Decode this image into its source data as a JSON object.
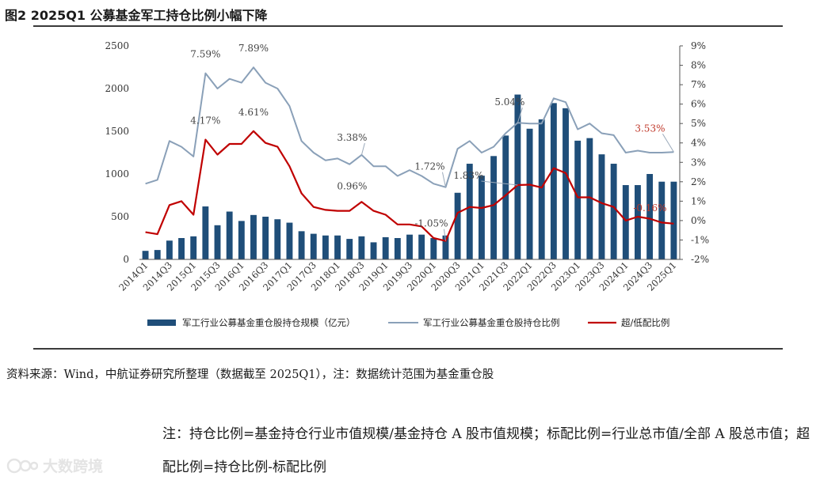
{
  "figure_title": "图2  2025Q1 公募基金军工持仓比例小幅下降",
  "source_text": "资料来源：Wind，中航证券研究所整理（数据截至 2025Q1），注：数据统计范围为基金重仓股",
  "note_text": "注：持仓比例=基金持仓行业市值规模/基金持仓 A 股市值规模；标配比例=行业总市值/全部 A 股总市值；超配比例=持仓比例-标配比例",
  "watermark": "大数跨境",
  "colors": {
    "bar": "#1f4e79",
    "ratio_line": "#8aa0b8",
    "over_line": "#c00000",
    "over_ann": "#c0392b"
  },
  "chart_data": {
    "type": "bar+line",
    "title": "2025Q1 公募基金军工持仓比例小幅下降",
    "categories": [
      "2014Q1",
      "2014Q2",
      "2014Q3",
      "2014Q4",
      "2015Q1",
      "2015Q2",
      "2015Q3",
      "2015Q4",
      "2016Q1",
      "2016Q2",
      "2016Q3",
      "2016Q4",
      "2017Q1",
      "2017Q2",
      "2017Q3",
      "2017Q4",
      "2018Q1",
      "2018Q2",
      "2018Q3",
      "2018Q4",
      "2019Q1",
      "2019Q2",
      "2019Q3",
      "2019Q4",
      "2020Q1",
      "2020Q2",
      "2020Q3",
      "2020Q4",
      "2021Q1",
      "2021Q2",
      "2021Q3",
      "2021Q4",
      "2022Q1",
      "2022Q2",
      "2022Q3",
      "2022Q4",
      "2023Q1",
      "2023Q2",
      "2023Q3",
      "2023Q4",
      "2024Q1",
      "2024Q2",
      "2024Q3",
      "2024Q4",
      "2025Q1"
    ],
    "x_tick_labels": [
      "2014Q1",
      "2014Q3",
      "2015Q1",
      "2015Q3",
      "2016Q1",
      "2016Q3",
      "2017Q1",
      "2017Q3",
      "2018Q1",
      "2018Q3",
      "2019Q1",
      "2019Q3",
      "2020Q1",
      "2020Q3",
      "2021Q1",
      "2021Q3",
      "2022Q1",
      "2022Q3",
      "2023Q1",
      "2023Q3",
      "2024Q1",
      "2024Q3",
      "2025Q1"
    ],
    "left_axis": {
      "min": 0,
      "max": 2500,
      "ticks": [
        "0",
        "500",
        "1000",
        "1500",
        "2000",
        "2500"
      ]
    },
    "right_axis": {
      "min": -2,
      "max": 9,
      "ticks": [
        "-2%",
        "-1%",
        "0%",
        "1%",
        "2%",
        "3%",
        "4%",
        "5%",
        "6%",
        "7%",
        "8%",
        "9%"
      ]
    },
    "series": [
      {
        "name": "军工行业公募基金重仓股持仓规模（亿元）",
        "type": "bar",
        "axis": "left",
        "values": [
          100,
          110,
          220,
          250,
          270,
          620,
          400,
          560,
          450,
          520,
          500,
          470,
          430,
          330,
          300,
          280,
          280,
          240,
          270,
          200,
          260,
          250,
          290,
          290,
          250,
          280,
          780,
          1120,
          980,
          1210,
          1450,
          1930,
          1530,
          1640,
          1830,
          1770,
          1390,
          1420,
          1230,
          1120,
          870,
          870,
          1000,
          910,
          910
        ]
      },
      {
        "name": "军工行业公募基金重仓股持仓比例",
        "type": "line",
        "axis": "right",
        "values": [
          1.9,
          2.1,
          4.1,
          3.8,
          3.3,
          7.59,
          6.8,
          7.3,
          7.1,
          7.89,
          7.1,
          6.8,
          5.9,
          4.1,
          3.5,
          3.1,
          3.2,
          2.9,
          3.38,
          2.8,
          2.8,
          2.3,
          2.6,
          2.3,
          1.9,
          1.72,
          3.7,
          4.1,
          3.5,
          3.8,
          4.5,
          5.04,
          5.0,
          5.0,
          6.3,
          6.1,
          4.7,
          5.0,
          4.5,
          4.4,
          3.5,
          3.6,
          3.5,
          3.5,
          3.53
        ]
      },
      {
        "name": "超/低配比例",
        "type": "line",
        "axis": "right",
        "values": [
          -0.6,
          -0.7,
          0.8,
          1.0,
          0.3,
          4.17,
          3.4,
          3.95,
          3.95,
          4.61,
          4.0,
          3.8,
          2.8,
          1.4,
          0.7,
          0.55,
          0.5,
          0.5,
          0.96,
          0.5,
          0.3,
          -0.2,
          -0.2,
          -0.3,
          -0.9,
          -1.05,
          0.4,
          0.7,
          0.65,
          0.8,
          1.3,
          1.83,
          1.85,
          1.7,
          2.7,
          2.45,
          1.2,
          1.2,
          0.9,
          0.7,
          0.0,
          0.2,
          0.1,
          -0.1,
          -0.16
        ]
      }
    ],
    "annotations": [
      {
        "text": "7.59%",
        "series": 1,
        "index": 5
      },
      {
        "text": "7.89%",
        "series": 1,
        "index": 9
      },
      {
        "text": "3.38%",
        "series": 1,
        "index": 18
      },
      {
        "text": "1.72%",
        "series": 1,
        "index": 25
      },
      {
        "text": "5.04%",
        "series": 1,
        "index": 31
      },
      {
        "text": "3.53%",
        "series": 1,
        "index": 44
      },
      {
        "text": "4.17%",
        "series": 2,
        "index": 5
      },
      {
        "text": "4.61%",
        "series": 2,
        "index": 9
      },
      {
        "text": "0.96%",
        "series": 2,
        "index": 18
      },
      {
        "text": "-1.05%",
        "series": 2,
        "index": 25
      },
      {
        "text": "1.83%",
        "series": 2,
        "index": 31
      },
      {
        "text": "-0.16%",
        "series": 2,
        "index": 44
      }
    ],
    "legend_position": "bottom"
  }
}
